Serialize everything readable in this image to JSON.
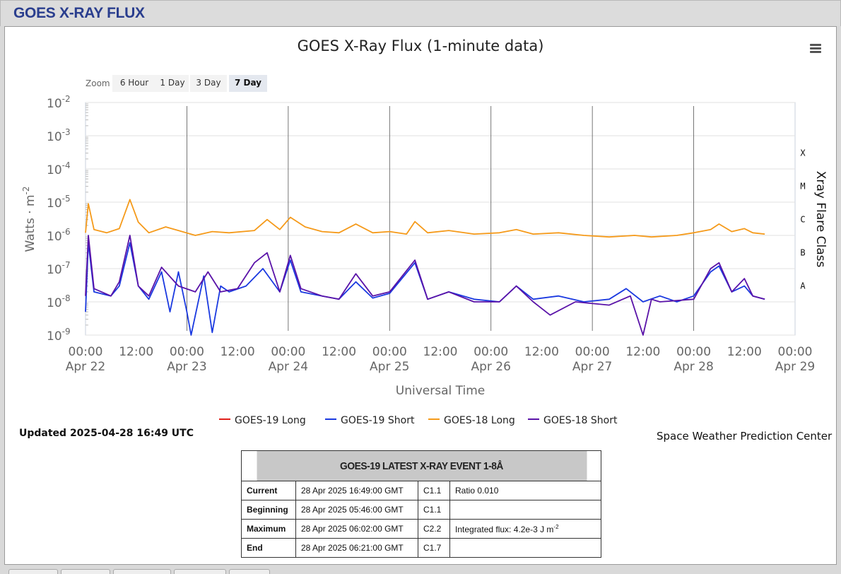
{
  "header": {
    "title": "GOES X-RAY FLUX"
  },
  "zoom": {
    "label": "Zoom",
    "options": [
      "6 Hour",
      "1 Day",
      "3 Day",
      "7 Day"
    ],
    "selected": "7 Day"
  },
  "legend": [
    {
      "label": "GOES-19 Long",
      "color": "#e0201a"
    },
    {
      "label": "GOES-19 Short",
      "color": "#1a39e0"
    },
    {
      "label": "GOES-18 Long",
      "color": "#f59a1a"
    },
    {
      "label": "GOES-18 Short",
      "color": "#5a13a8"
    }
  ],
  "footer": {
    "updated": "Updated 2025-04-28 16:49 UTC",
    "credit": "Space Weather Prediction Center"
  },
  "event_table": {
    "title": "GOES-19 LATEST X-RAY EVENT 1-8Å",
    "rows": [
      {
        "label": "Current",
        "time": "28 Apr 2025 16:49:00 GMT",
        "class": "C1.1",
        "note": "Ratio 0.010"
      },
      {
        "label": "Beginning",
        "time": "28 Apr 2025 05:46:00 GMT",
        "class": "C1.1",
        "note": ""
      },
      {
        "label": "Maximum",
        "time": "28 Apr 2025 06:02:00 GMT",
        "class": "C2.2",
        "note": "Integrated flux: 4.2e-3 J m",
        "note_sup": "-2"
      },
      {
        "label": "End",
        "time": "28 Apr 2025 06:21:00 GMT",
        "class": "C1.7",
        "note": ""
      }
    ]
  },
  "chart_data": {
    "type": "line",
    "title": "GOES X-Ray Flux (1-minute data)",
    "xlabel": "Universal Time",
    "ylabel": "Watts · m",
    "ylabel_sup": "-2",
    "right_label": "Xray Flare Class",
    "yscale": "log",
    "ylim": [
      1e-09,
      0.01
    ],
    "y_ticks": [
      {
        "base": "10",
        "exp": "-2",
        "value": 0.01
      },
      {
        "base": "10",
        "exp": "-3",
        "value": 0.001
      },
      {
        "base": "10",
        "exp": "-4",
        "value": 0.0001
      },
      {
        "base": "10",
        "exp": "-5",
        "value": 1e-05
      },
      {
        "base": "10",
        "exp": "-6",
        "value": 1e-06
      },
      {
        "base": "10",
        "exp": "-7",
        "value": 1e-07
      },
      {
        "base": "10",
        "exp": "-8",
        "value": 1e-08
      },
      {
        "base": "10",
        "exp": "-9",
        "value": 1e-09
      }
    ],
    "xlim": [
      "2025-04-22 00:00",
      "2025-04-29 00:00"
    ],
    "x_ticks": [
      {
        "time": "00:00",
        "date": "Apr 22",
        "day": 0
      },
      {
        "time": "12:00",
        "date": "",
        "day": 0.5
      },
      {
        "time": "00:00",
        "date": "Apr 23",
        "day": 1
      },
      {
        "time": "12:00",
        "date": "",
        "day": 1.5
      },
      {
        "time": "00:00",
        "date": "Apr 24",
        "day": 2
      },
      {
        "time": "12:00",
        "date": "",
        "day": 2.5
      },
      {
        "time": "00:00",
        "date": "Apr 25",
        "day": 3
      },
      {
        "time": "12:00",
        "date": "",
        "day": 3.5
      },
      {
        "time": "00:00",
        "date": "Apr 26",
        "day": 4
      },
      {
        "time": "12:00",
        "date": "",
        "day": 4.5
      },
      {
        "time": "00:00",
        "date": "Apr 27",
        "day": 5
      },
      {
        "time": "12:00",
        "date": "",
        "day": 5.5
      },
      {
        "time": "00:00",
        "date": "Apr 28",
        "day": 6
      },
      {
        "time": "12:00",
        "date": "",
        "day": 6.5
      },
      {
        "time": "00:00",
        "date": "Apr 29",
        "day": 7
      }
    ],
    "flare_classes": [
      {
        "label": "X",
        "value": 0.0001
      },
      {
        "label": "M",
        "value": 1e-05
      },
      {
        "label": "C",
        "value": 1e-06
      },
      {
        "label": "B",
        "value": 1e-07
      },
      {
        "label": "A",
        "value": 1e-08
      }
    ],
    "series": [
      {
        "name": "GOES-19 Long",
        "color": "#e0201a",
        "points": []
      },
      {
        "name": "GOES-18 Long",
        "color": "#f59a1a",
        "points": [
          [
            "2025-04-22 00:00",
            1.2e-06
          ],
          [
            "2025-04-22 00:40",
            9e-06
          ],
          [
            "2025-04-22 02:00",
            1.5e-06
          ],
          [
            "2025-04-22 05:00",
            1.2e-06
          ],
          [
            "2025-04-22 08:00",
            1.6e-06
          ],
          [
            "2025-04-22 10:30",
            1.2e-05
          ],
          [
            "2025-04-22 12:30",
            2.5e-06
          ],
          [
            "2025-04-22 15:00",
            1.2e-06
          ],
          [
            "2025-04-22 19:00",
            1.8e-06
          ],
          [
            "2025-04-22 22:00",
            1.4e-06
          ],
          [
            "2025-04-23 02:00",
            1e-06
          ],
          [
            "2025-04-23 06:00",
            1.3e-06
          ],
          [
            "2025-04-23 10:00",
            1.2e-06
          ],
          [
            "2025-04-23 16:00",
            1.4e-06
          ],
          [
            "2025-04-23 19:00",
            3e-06
          ],
          [
            "2025-04-23 22:00",
            1.5e-06
          ],
          [
            "2025-04-24 00:30",
            3.5e-06
          ],
          [
            "2025-04-24 04:00",
            1.8e-06
          ],
          [
            "2025-04-24 08:00",
            1.3e-06
          ],
          [
            "2025-04-24 12:00",
            1.2e-06
          ],
          [
            "2025-04-24 16:00",
            2.2e-06
          ],
          [
            "2025-04-24 20:00",
            1.2e-06
          ],
          [
            "2025-04-25 00:00",
            1.3e-06
          ],
          [
            "2025-04-25 04:00",
            1.1e-06
          ],
          [
            "2025-04-25 06:00",
            2.6e-06
          ],
          [
            "2025-04-25 09:00",
            1.2e-06
          ],
          [
            "2025-04-25 14:00",
            1.4e-06
          ],
          [
            "2025-04-25 20:00",
            1.1e-06
          ],
          [
            "2025-04-26 02:00",
            1.2e-06
          ],
          [
            "2025-04-26 06:00",
            1.5e-06
          ],
          [
            "2025-04-26 10:00",
            1.1e-06
          ],
          [
            "2025-04-26 16:00",
            1.2e-06
          ],
          [
            "2025-04-26 22:00",
            1e-06
          ],
          [
            "2025-04-27 04:00",
            9e-07
          ],
          [
            "2025-04-27 10:00",
            1e-06
          ],
          [
            "2025-04-27 14:00",
            9e-07
          ],
          [
            "2025-04-27 20:00",
            1e-06
          ],
          [
            "2025-04-28 00:00",
            1.2e-06
          ],
          [
            "2025-04-28 04:00",
            1.5e-06
          ],
          [
            "2025-04-28 06:00",
            2.2e-06
          ],
          [
            "2025-04-28 09:00",
            1.3e-06
          ],
          [
            "2025-04-28 12:00",
            1.6e-06
          ],
          [
            "2025-04-28 14:00",
            1.2e-06
          ],
          [
            "2025-04-28 16:49",
            1.1e-06
          ]
        ]
      },
      {
        "name": "GOES-19 Short",
        "color": "#1a39e0",
        "points": [
          [
            "2025-04-22 00:00",
            5e-09
          ],
          [
            "2025-04-22 00:40",
            6e-07
          ],
          [
            "2025-04-22 02:00",
            2e-08
          ],
          [
            "2025-04-22 06:00",
            1.5e-08
          ],
          [
            "2025-04-22 08:00",
            3e-08
          ],
          [
            "2025-04-22 10:30",
            6e-07
          ],
          [
            "2025-04-22 12:30",
            3e-08
          ],
          [
            "2025-04-22 15:00",
            1.2e-08
          ],
          [
            "2025-04-22 18:00",
            8e-08
          ],
          [
            "2025-04-22 20:00",
            5e-09
          ],
          [
            "2025-04-22 22:00",
            8e-08
          ],
          [
            "2025-04-23 00:00",
            5e-09
          ],
          [
            "2025-04-23 01:00",
            1e-09
          ],
          [
            "2025-04-23 04:00",
            6e-08
          ],
          [
            "2025-04-23 06:00",
            1.2e-09
          ],
          [
            "2025-04-23 08:00",
            3e-08
          ],
          [
            "2025-04-23 10:00",
            2e-08
          ],
          [
            "2025-04-23 14:00",
            3e-08
          ],
          [
            "2025-04-23 18:00",
            1e-07
          ],
          [
            "2025-04-23 22:00",
            2e-08
          ],
          [
            "2025-04-24 00:30",
            1.8e-07
          ],
          [
            "2025-04-24 03:00",
            2e-08
          ],
          [
            "2025-04-24 08:00",
            1.5e-08
          ],
          [
            "2025-04-24 12:00",
            1.2e-08
          ],
          [
            "2025-04-24 16:00",
            4e-08
          ],
          [
            "2025-04-24 20:00",
            1.3e-08
          ],
          [
            "2025-04-25 00:00",
            1.8e-08
          ],
          [
            "2025-04-25 06:00",
            1.5e-07
          ],
          [
            "2025-04-25 09:00",
            1.2e-08
          ],
          [
            "2025-04-25 14:00",
            2e-08
          ],
          [
            "2025-04-25 20:00",
            1.2e-08
          ],
          [
            "2025-04-26 02:00",
            1e-08
          ],
          [
            "2025-04-26 06:00",
            3e-08
          ],
          [
            "2025-04-26 10:00",
            1.2e-08
          ],
          [
            "2025-04-26 16:00",
            1.5e-08
          ],
          [
            "2025-04-26 22:00",
            1e-08
          ],
          [
            "2025-04-27 04:00",
            1.2e-08
          ],
          [
            "2025-04-27 08:00",
            2.5e-08
          ],
          [
            "2025-04-27 12:00",
            1e-08
          ],
          [
            "2025-04-27 16:00",
            1.5e-08
          ],
          [
            "2025-04-27 20:00",
            1e-08
          ],
          [
            "2025-04-28 00:00",
            1.5e-08
          ],
          [
            "2025-04-28 04:00",
            8e-08
          ],
          [
            "2025-04-28 06:00",
            1.2e-07
          ],
          [
            "2025-04-28 09:00",
            2e-08
          ],
          [
            "2025-04-28 12:00",
            3e-08
          ],
          [
            "2025-04-28 14:00",
            1.5e-08
          ],
          [
            "2025-04-28 16:49",
            1.2e-08
          ]
        ]
      },
      {
        "name": "GOES-18 Short",
        "color": "#5a13a8",
        "points": [
          [
            "2025-04-22 00:00",
            1.5e-08
          ],
          [
            "2025-04-22 00:40",
            1e-06
          ],
          [
            "2025-04-22 02:00",
            2.5e-08
          ],
          [
            "2025-04-22 06:00",
            1.5e-08
          ],
          [
            "2025-04-22 08:00",
            4e-08
          ],
          [
            "2025-04-22 10:30",
            1e-06
          ],
          [
            "2025-04-22 12:30",
            3e-08
          ],
          [
            "2025-04-22 15:00",
            1.5e-08
          ],
          [
            "2025-04-22 18:00",
            1.1e-07
          ],
          [
            "2025-04-22 22:00",
            3e-08
          ],
          [
            "2025-04-23 02:00",
            2e-08
          ],
          [
            "2025-04-23 05:00",
            8e-08
          ],
          [
            "2025-04-23 08:00",
            2e-08
          ],
          [
            "2025-04-23 12:00",
            2.5e-08
          ],
          [
            "2025-04-23 16:00",
            1.5e-07
          ],
          [
            "2025-04-23 19:00",
            3e-07
          ],
          [
            "2025-04-23 22:00",
            2e-08
          ],
          [
            "2025-04-24 00:30",
            2.5e-07
          ],
          [
            "2025-04-24 03:00",
            2.5e-08
          ],
          [
            "2025-04-24 08:00",
            1.5e-08
          ],
          [
            "2025-04-24 12:00",
            1.2e-08
          ],
          [
            "2025-04-24 16:00",
            7e-08
          ],
          [
            "2025-04-24 20:00",
            1.5e-08
          ],
          [
            "2025-04-25 00:00",
            2e-08
          ],
          [
            "2025-04-25 06:00",
            1.8e-07
          ],
          [
            "2025-04-25 09:00",
            1.2e-08
          ],
          [
            "2025-04-25 14:00",
            2e-08
          ],
          [
            "2025-04-25 20:00",
            1e-08
          ],
          [
            "2025-04-26 02:00",
            1e-08
          ],
          [
            "2025-04-26 06:00",
            3e-08
          ],
          [
            "2025-04-26 10:00",
            1e-08
          ],
          [
            "2025-04-26 14:00",
            4e-09
          ],
          [
            "2025-04-26 20:00",
            1e-08
          ],
          [
            "2025-04-27 04:00",
            8e-09
          ],
          [
            "2025-04-27 09:00",
            1.5e-08
          ],
          [
            "2025-04-27 12:00",
            1e-09
          ],
          [
            "2025-04-27 14:00",
            1.2e-08
          ],
          [
            "2025-04-27 16:00",
            1e-08
          ],
          [
            "2025-04-28 00:00",
            1.2e-08
          ],
          [
            "2025-04-28 04:00",
            1e-07
          ],
          [
            "2025-04-28 06:00",
            1.5e-07
          ],
          [
            "2025-04-28 09:00",
            2e-08
          ],
          [
            "2025-04-28 12:00",
            5e-08
          ],
          [
            "2025-04-28 14:00",
            1.5e-08
          ],
          [
            "2025-04-28 16:49",
            1.2e-08
          ]
        ]
      }
    ],
    "grid": true,
    "legend_position": "bottom-center"
  }
}
